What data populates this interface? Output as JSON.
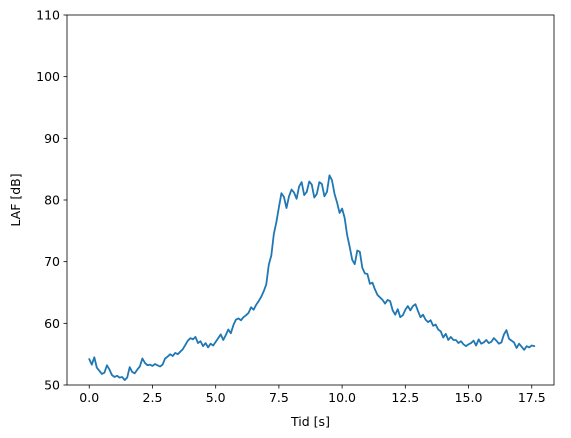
{
  "chart_data": {
    "type": "line",
    "title": "",
    "xlabel": "Tid [s]",
    "ylabel": "LAF [dB]",
    "xlim": [
      -0.88,
      18.38
    ],
    "ylim": [
      50,
      110
    ],
    "xticks": [
      0.0,
      2.5,
      5.0,
      7.5,
      10.0,
      12.5,
      15.0,
      17.5
    ],
    "xtick_labels": [
      "0.0",
      "2.5",
      "5.0",
      "7.5",
      "10.0",
      "12.5",
      "15.0",
      "17.5"
    ],
    "yticks": [
      50,
      60,
      70,
      80,
      90,
      100,
      110
    ],
    "ytick_labels": [
      "50",
      "60",
      "70",
      "80",
      "90",
      "100",
      "110"
    ],
    "grid": false,
    "series": [
      {
        "color": "#1f77b4",
        "x": [
          0.0,
          0.1,
          0.2,
          0.3,
          0.4,
          0.5,
          0.6,
          0.7,
          0.8,
          0.9,
          1.0,
          1.1,
          1.2,
          1.3,
          1.4,
          1.5,
          1.6,
          1.7,
          1.8,
          1.9,
          2.0,
          2.1,
          2.2,
          2.3,
          2.4,
          2.5,
          2.6,
          2.7,
          2.8,
          2.9,
          3.0,
          3.1,
          3.2,
          3.3,
          3.4,
          3.5,
          3.6,
          3.7,
          3.8,
          3.9,
          4.0,
          4.1,
          4.2,
          4.3,
          4.4,
          4.5,
          4.6,
          4.7,
          4.8,
          4.9,
          5.0,
          5.1,
          5.2,
          5.3,
          5.4,
          5.5,
          5.6,
          5.7,
          5.8,
          5.9,
          6.0,
          6.1,
          6.2,
          6.3,
          6.4,
          6.5,
          6.6,
          6.7,
          6.8,
          6.9,
          7.0,
          7.1,
          7.2,
          7.3,
          7.4,
          7.5,
          7.6,
          7.7,
          7.8,
          7.9,
          8.0,
          8.1,
          8.2,
          8.3,
          8.4,
          8.5,
          8.6,
          8.7,
          8.8,
          8.9,
          9.0,
          9.1,
          9.2,
          9.3,
          9.4,
          9.5,
          9.6,
          9.7,
          9.8,
          9.9,
          10.0,
          10.1,
          10.2,
          10.3,
          10.4,
          10.5,
          10.6,
          10.7,
          10.8,
          10.9,
          11.0,
          11.1,
          11.2,
          11.3,
          11.4,
          11.5,
          11.6,
          11.7,
          11.8,
          11.9,
          12.0,
          12.1,
          12.2,
          12.3,
          12.4,
          12.5,
          12.6,
          12.7,
          12.8,
          12.9,
          13.0,
          13.1,
          13.2,
          13.3,
          13.4,
          13.5,
          13.6,
          13.7,
          13.8,
          13.9,
          14.0,
          14.1,
          14.2,
          14.3,
          14.4,
          14.5,
          14.6,
          14.7,
          14.8,
          14.9,
          15.0,
          15.1,
          15.2,
          15.3,
          15.4,
          15.5,
          15.6,
          15.7,
          15.8,
          15.9,
          16.0,
          16.1,
          16.2,
          16.3,
          16.4,
          16.5,
          16.6,
          16.7,
          16.8,
          16.9,
          17.0,
          17.1,
          17.2,
          17.3,
          17.4,
          17.5,
          17.6
        ],
        "values": [
          54.2,
          53.3,
          54.5,
          52.8,
          52.3,
          51.8,
          52.0,
          53.2,
          52.5,
          51.6,
          51.3,
          51.5,
          51.2,
          51.3,
          50.8,
          51.2,
          52.9,
          52.1,
          51.9,
          52.5,
          53.0,
          54.3,
          53.6,
          53.2,
          53.3,
          53.1,
          53.4,
          53.2,
          53.0,
          53.3,
          54.3,
          54.6,
          55.0,
          54.7,
          55.2,
          55.0,
          55.4,
          55.8,
          56.5,
          57.2,
          57.6,
          57.4,
          57.8,
          56.8,
          57.1,
          56.3,
          56.8,
          56.1,
          56.7,
          56.4,
          57.0,
          57.6,
          58.2,
          57.3,
          58.1,
          59.0,
          58.4,
          59.7,
          60.6,
          60.8,
          60.5,
          61.0,
          61.3,
          61.7,
          62.6,
          62.2,
          63.0,
          63.6,
          64.3,
          65.2,
          66.3,
          69.5,
          71.0,
          74.5,
          76.4,
          78.8,
          81.1,
          80.5,
          78.7,
          80.6,
          81.7,
          81.2,
          80.2,
          82.2,
          82.9,
          80.8,
          81.3,
          83.0,
          82.5,
          80.4,
          81.0,
          82.9,
          82.6,
          80.6,
          81.3,
          84.0,
          83.2,
          81.0,
          79.6,
          77.9,
          78.6,
          77.1,
          74.3,
          72.4,
          70.3,
          69.6,
          71.8,
          71.6,
          69.0,
          68.1,
          68.0,
          66.4,
          66.6,
          65.5,
          64.6,
          64.2,
          63.8,
          63.2,
          63.8,
          63.6,
          62.1,
          61.4,
          62.3,
          61.0,
          61.3,
          62.2,
          62.8,
          62.1,
          62.8,
          63.1,
          62.0,
          61.0,
          61.4,
          60.6,
          60.2,
          60.5,
          59.6,
          59.8,
          59.0,
          58.7,
          57.7,
          58.3,
          57.3,
          57.8,
          57.3,
          57.3,
          56.8,
          57.1,
          56.6,
          56.3,
          56.6,
          56.8,
          57.2,
          56.4,
          57.4,
          56.7,
          56.9,
          57.3,
          56.8,
          57.0,
          57.6,
          57.2,
          56.7,
          56.9,
          58.2,
          58.9,
          57.5,
          57.2,
          56.9,
          56.0,
          56.7,
          56.2,
          55.7,
          56.3,
          56.1,
          56.4,
          56.3
        ]
      }
    ]
  }
}
